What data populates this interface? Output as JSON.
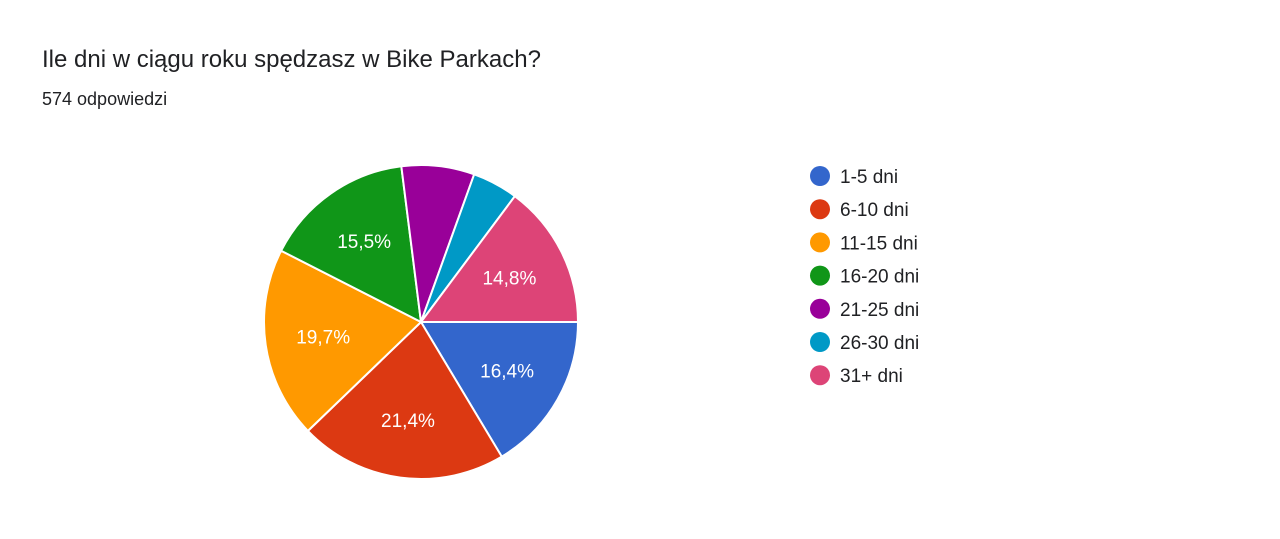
{
  "header": {
    "title": "Ile dni w ciągu roku spędzasz w Bike Parkach?",
    "response_count": "574 odpowiedzi"
  },
  "chart_data": {
    "type": "pie",
    "title": "Ile dni w ciągu roku spędzasz w Bike Parkach?",
    "categories": [
      "1-5 dni",
      "6-10 dni",
      "11-15 dni",
      "16-20 dni",
      "21-25 dni",
      "26-30 dni",
      "31+ dni"
    ],
    "values": [
      16.4,
      21.4,
      19.7,
      15.5,
      7.5,
      4.7,
      14.8
    ],
    "labels": [
      "16,4%",
      "21,4%",
      "19,7%",
      "15,5%",
      "",
      "",
      "14,8%"
    ],
    "colors": [
      "#3366cc",
      "#dc3912",
      "#ff9900",
      "#109618",
      "#990099",
      "#0099c6",
      "#dd4477"
    ],
    "legend_position": "right"
  }
}
